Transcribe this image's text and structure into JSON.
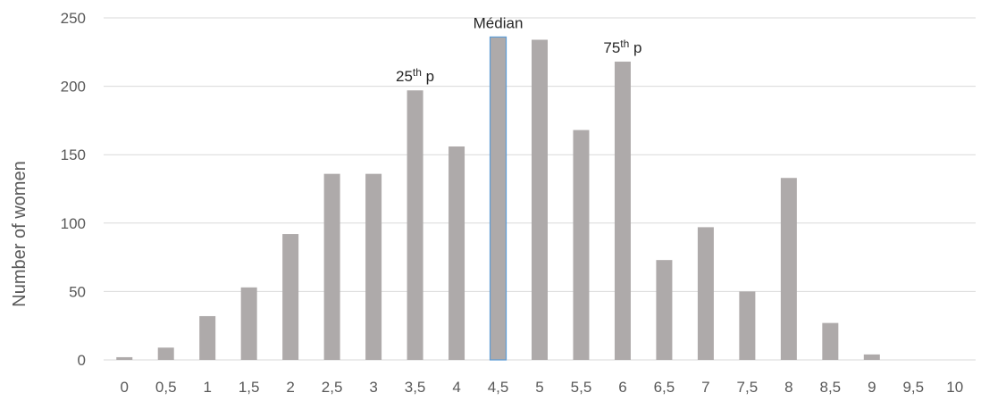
{
  "chart_data": {
    "type": "bar",
    "title": "",
    "xlabel": "",
    "ylabel": "Number of women",
    "categories": [
      "0",
      "0,5",
      "1",
      "1,5",
      "2",
      "2,5",
      "3",
      "3,5",
      "4",
      "4,5",
      "5",
      "5,5",
      "6",
      "6,5",
      "7",
      "7,5",
      "8",
      "8,5",
      "9",
      "9,5",
      "10"
    ],
    "values": [
      2,
      9,
      32,
      53,
      92,
      136,
      136,
      197,
      156,
      236,
      234,
      168,
      218,
      73,
      97,
      50,
      133,
      27,
      4,
      0,
      0
    ],
    "ylim": [
      0,
      250
    ],
    "yticks": [
      0,
      50,
      100,
      150,
      200,
      250
    ],
    "grid": true,
    "legend": "none",
    "highlight_index": 9,
    "colors": {
      "bar": "#aeaaaa",
      "highlight_fill": "#aeaaaa",
      "highlight_stroke": "#5b9bd5",
      "grid": "#d9d9d9",
      "text": "#595959"
    },
    "annotations": [
      {
        "category": "3,5",
        "base": "25",
        "sup": "th",
        "tail": " p"
      },
      {
        "category": "4,5",
        "base": "Médian",
        "sup": "",
        "tail": ""
      },
      {
        "category": "6",
        "base": "75",
        "sup": "th",
        "tail": " p"
      }
    ]
  }
}
